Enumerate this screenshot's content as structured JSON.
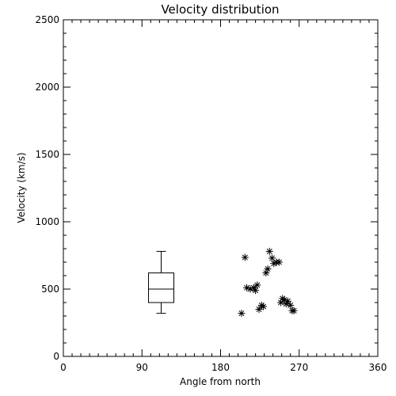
{
  "chart_data": {
    "type": "scatter",
    "title": "Velocity distribution",
    "xlabel": "Angle from north",
    "ylabel": "Velocity (km/s)",
    "xlim": [
      0,
      360
    ],
    "ylim": [
      0,
      2500
    ],
    "x_ticks": [
      0,
      90,
      180,
      270,
      360
    ],
    "y_ticks": [
      0,
      500,
      1000,
      1500,
      2000,
      2500
    ],
    "grid": false,
    "legend": "none",
    "colors": {
      "marks": "#000000",
      "background": "#ffffff"
    },
    "boxplot": {
      "x": 112,
      "min": 320,
      "q1": 400,
      "median": 500,
      "q3": 620,
      "max": 780
    },
    "points": [
      {
        "x": 204,
        "y": 320
      },
      {
        "x": 208,
        "y": 735
      },
      {
        "x": 210,
        "y": 510
      },
      {
        "x": 214,
        "y": 500
      },
      {
        "x": 218,
        "y": 510
      },
      {
        "x": 220,
        "y": 490
      },
      {
        "x": 222,
        "y": 530
      },
      {
        "x": 224,
        "y": 350
      },
      {
        "x": 227,
        "y": 380
      },
      {
        "x": 229,
        "y": 370
      },
      {
        "x": 232,
        "y": 620
      },
      {
        "x": 234,
        "y": 650
      },
      {
        "x": 236,
        "y": 780
      },
      {
        "x": 239,
        "y": 730
      },
      {
        "x": 241,
        "y": 690
      },
      {
        "x": 244,
        "y": 700
      },
      {
        "x": 247,
        "y": 700
      },
      {
        "x": 249,
        "y": 400
      },
      {
        "x": 251,
        "y": 430
      },
      {
        "x": 253,
        "y": 420
      },
      {
        "x": 255,
        "y": 390
      },
      {
        "x": 257,
        "y": 410
      },
      {
        "x": 260,
        "y": 380
      },
      {
        "x": 262,
        "y": 340
      },
      {
        "x": 264,
        "y": 340
      }
    ]
  }
}
